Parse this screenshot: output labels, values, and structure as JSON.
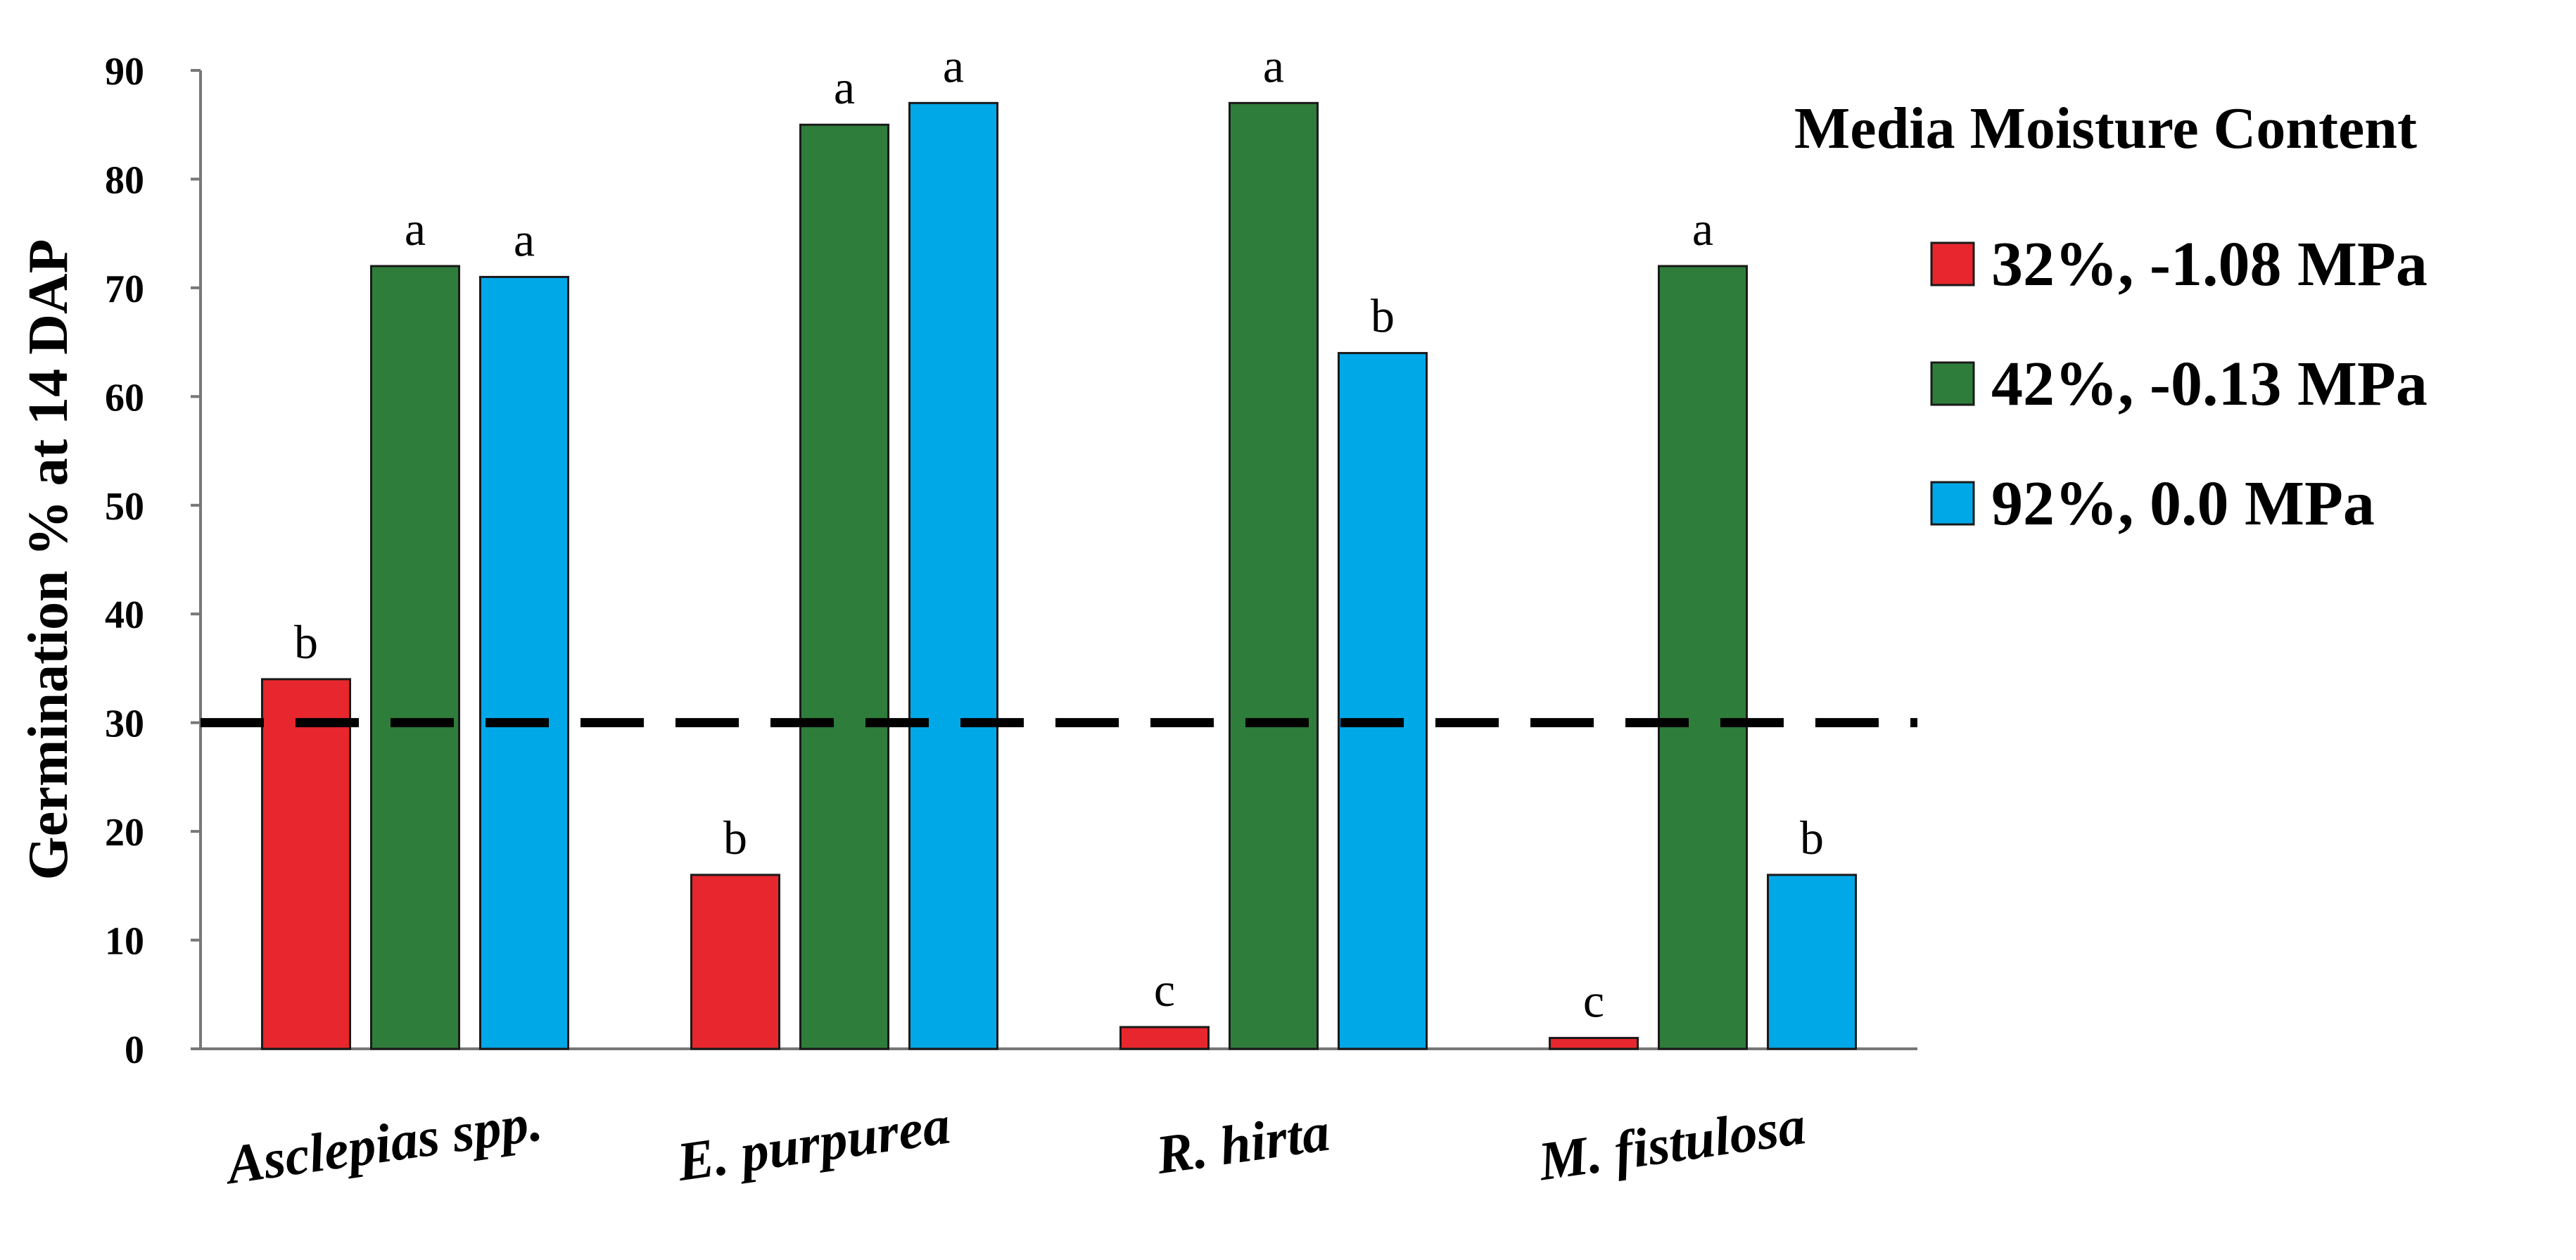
{
  "chart_data": {
    "type": "bar",
    "title": "",
    "xlabel": "",
    "ylabel": "Germination % at 14 DAP",
    "ylim": [
      0,
      90
    ],
    "yticks": [
      0,
      10,
      20,
      30,
      40,
      50,
      60,
      70,
      80,
      90
    ],
    "categories": [
      "Asclepias spp.",
      "E. purpurea",
      "R. hirta",
      "M. fistulosa"
    ],
    "legend": {
      "title": "Media Moisture Content",
      "placement": "right"
    },
    "series": [
      {
        "name": "32%, -1.08 MPa",
        "color": "#e8262e",
        "values": [
          34,
          16,
          2,
          1
        ],
        "labels": [
          "b",
          "b",
          "c",
          "c"
        ]
      },
      {
        "name": "42%, -0.13 MPa",
        "color": "#2f7d3a",
        "values": [
          72,
          85,
          87,
          72
        ],
        "labels": [
          "a",
          "a",
          "a",
          "a"
        ]
      },
      {
        "name": "92%, 0.0 MPa",
        "color": "#00a8e8",
        "values": [
          71,
          87,
          64,
          16
        ],
        "labels": [
          "a",
          "a",
          "b",
          "b"
        ]
      }
    ],
    "reference_line": {
      "y": 30,
      "style": "dashed"
    },
    "grid": false
  }
}
